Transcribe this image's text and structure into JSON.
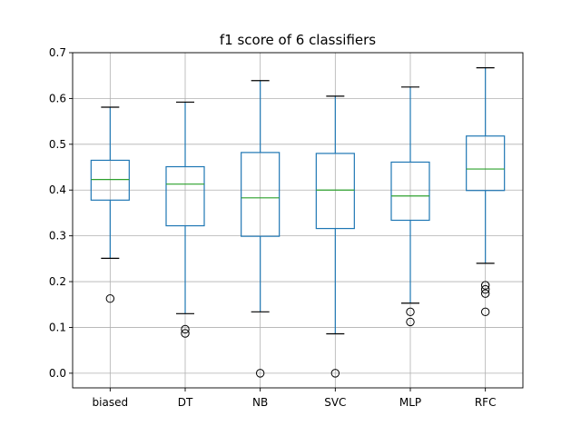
{
  "chart_data": {
    "type": "box",
    "title": "f1 score of 6 classifiers",
    "xlabel": "",
    "ylabel": "",
    "ylim": [
      -0.032,
      0.7
    ],
    "yticks": [
      0.0,
      0.1,
      0.2,
      0.3,
      0.4,
      0.5,
      0.6,
      0.7
    ],
    "ytick_labels": [
      "0.0",
      "0.1",
      "0.2",
      "0.3",
      "0.4",
      "0.5",
      "0.6",
      "0.7"
    ],
    "grid": true,
    "legend": "none",
    "colors": {
      "box": "#1f77b4",
      "median": "#2ca02c",
      "whisker_cap": "#000000",
      "grid": "#b0b0b0",
      "flier": "#000000"
    },
    "categories": [
      "biased",
      "DT",
      "NB",
      "SVC",
      "MLP",
      "RFC"
    ],
    "boxes": [
      {
        "name": "biased",
        "whisker_low": 0.251,
        "q1": 0.378,
        "median": 0.423,
        "q3": 0.465,
        "whisker_high": 0.581,
        "fliers": [
          0.163
        ]
      },
      {
        "name": "DT",
        "whisker_low": 0.13,
        "q1": 0.322,
        "median": 0.413,
        "q3": 0.451,
        "whisker_high": 0.592,
        "fliers": [
          0.096,
          0.087
        ]
      },
      {
        "name": "NB",
        "whisker_low": 0.134,
        "q1": 0.299,
        "median": 0.383,
        "q3": 0.482,
        "whisker_high": 0.639,
        "fliers": [
          0.0
        ]
      },
      {
        "name": "SVC",
        "whisker_low": 0.086,
        "q1": 0.316,
        "median": 0.4,
        "q3": 0.48,
        "whisker_high": 0.605,
        "fliers": [
          0.0
        ]
      },
      {
        "name": "MLP",
        "whisker_low": 0.153,
        "q1": 0.334,
        "median": 0.387,
        "q3": 0.461,
        "whisker_high": 0.625,
        "fliers": [
          0.134,
          0.112
        ]
      },
      {
        "name": "RFC",
        "whisker_low": 0.24,
        "q1": 0.399,
        "median": 0.446,
        "q3": 0.518,
        "whisker_high": 0.667,
        "fliers": [
          0.192,
          0.183,
          0.174,
          0.134
        ]
      }
    ]
  }
}
